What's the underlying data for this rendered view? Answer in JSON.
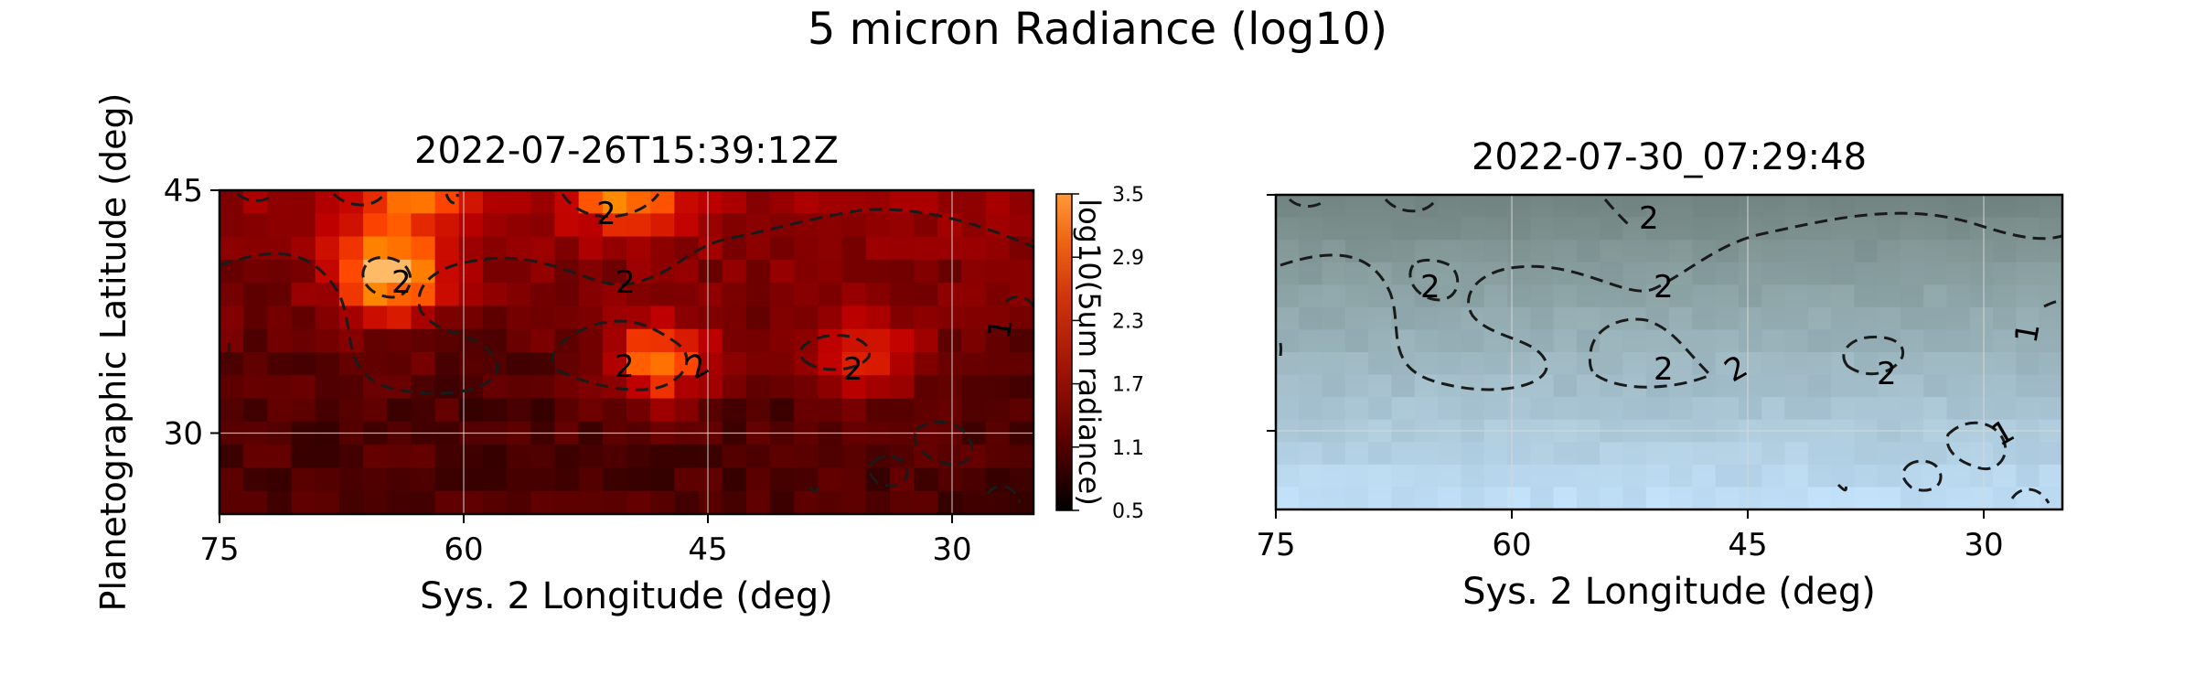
{
  "figure": {
    "title": "5 micron Radiance (log10)",
    "ylabel": "Planetographic Latitude (deg)"
  },
  "chart_data": [
    {
      "type": "heatmap",
      "title": "2022-07-26T15:39:12Z",
      "xlabel": "Sys. 2 Longitude (deg)",
      "ylabel": "Planetographic Latitude (deg)",
      "x_ticks": [
        75,
        60,
        45,
        30
      ],
      "y_ticks": [
        45,
        30
      ],
      "xlim": [
        75,
        25
      ],
      "ylim": [
        25,
        45
      ],
      "grid": true,
      "colormap": "gist_heat",
      "colorbar": {
        "label": "log10(5um radiance)",
        "ticks": [
          "0.5",
          "1.1",
          "1.7",
          "2.3",
          "2.9",
          "3.5"
        ],
        "range": [
          0.5,
          3.5
        ]
      },
      "contour_labels": [
        "2",
        "2",
        "2",
        "2",
        "2",
        "2",
        "1"
      ],
      "hotspots": [
        {
          "lon": 64.5,
          "lat": 40.0,
          "value": 3.1
        },
        {
          "lon": 48.0,
          "lat": 34.5,
          "value": 2.5
        },
        {
          "lon": 35.5,
          "lat": 35.0,
          "value": 2.2
        },
        {
          "lon": 50.0,
          "lat": 45.0,
          "value": 2.8
        },
        {
          "lon": 63.0,
          "lat": 45.0,
          "value": 2.6
        }
      ]
    },
    {
      "type": "heatmap",
      "title": "2022-07-30_07:29:48",
      "xlabel": "Sys. 2 Longitude (deg)",
      "x_ticks": [
        75,
        60,
        45,
        30
      ],
      "y_ticks": [],
      "xlim": [
        75,
        25
      ],
      "ylim": [
        25,
        45
      ],
      "grid": true,
      "contour_labels": [
        "2",
        "2",
        "2",
        "2",
        "2",
        "2",
        "1",
        "1"
      ]
    }
  ]
}
